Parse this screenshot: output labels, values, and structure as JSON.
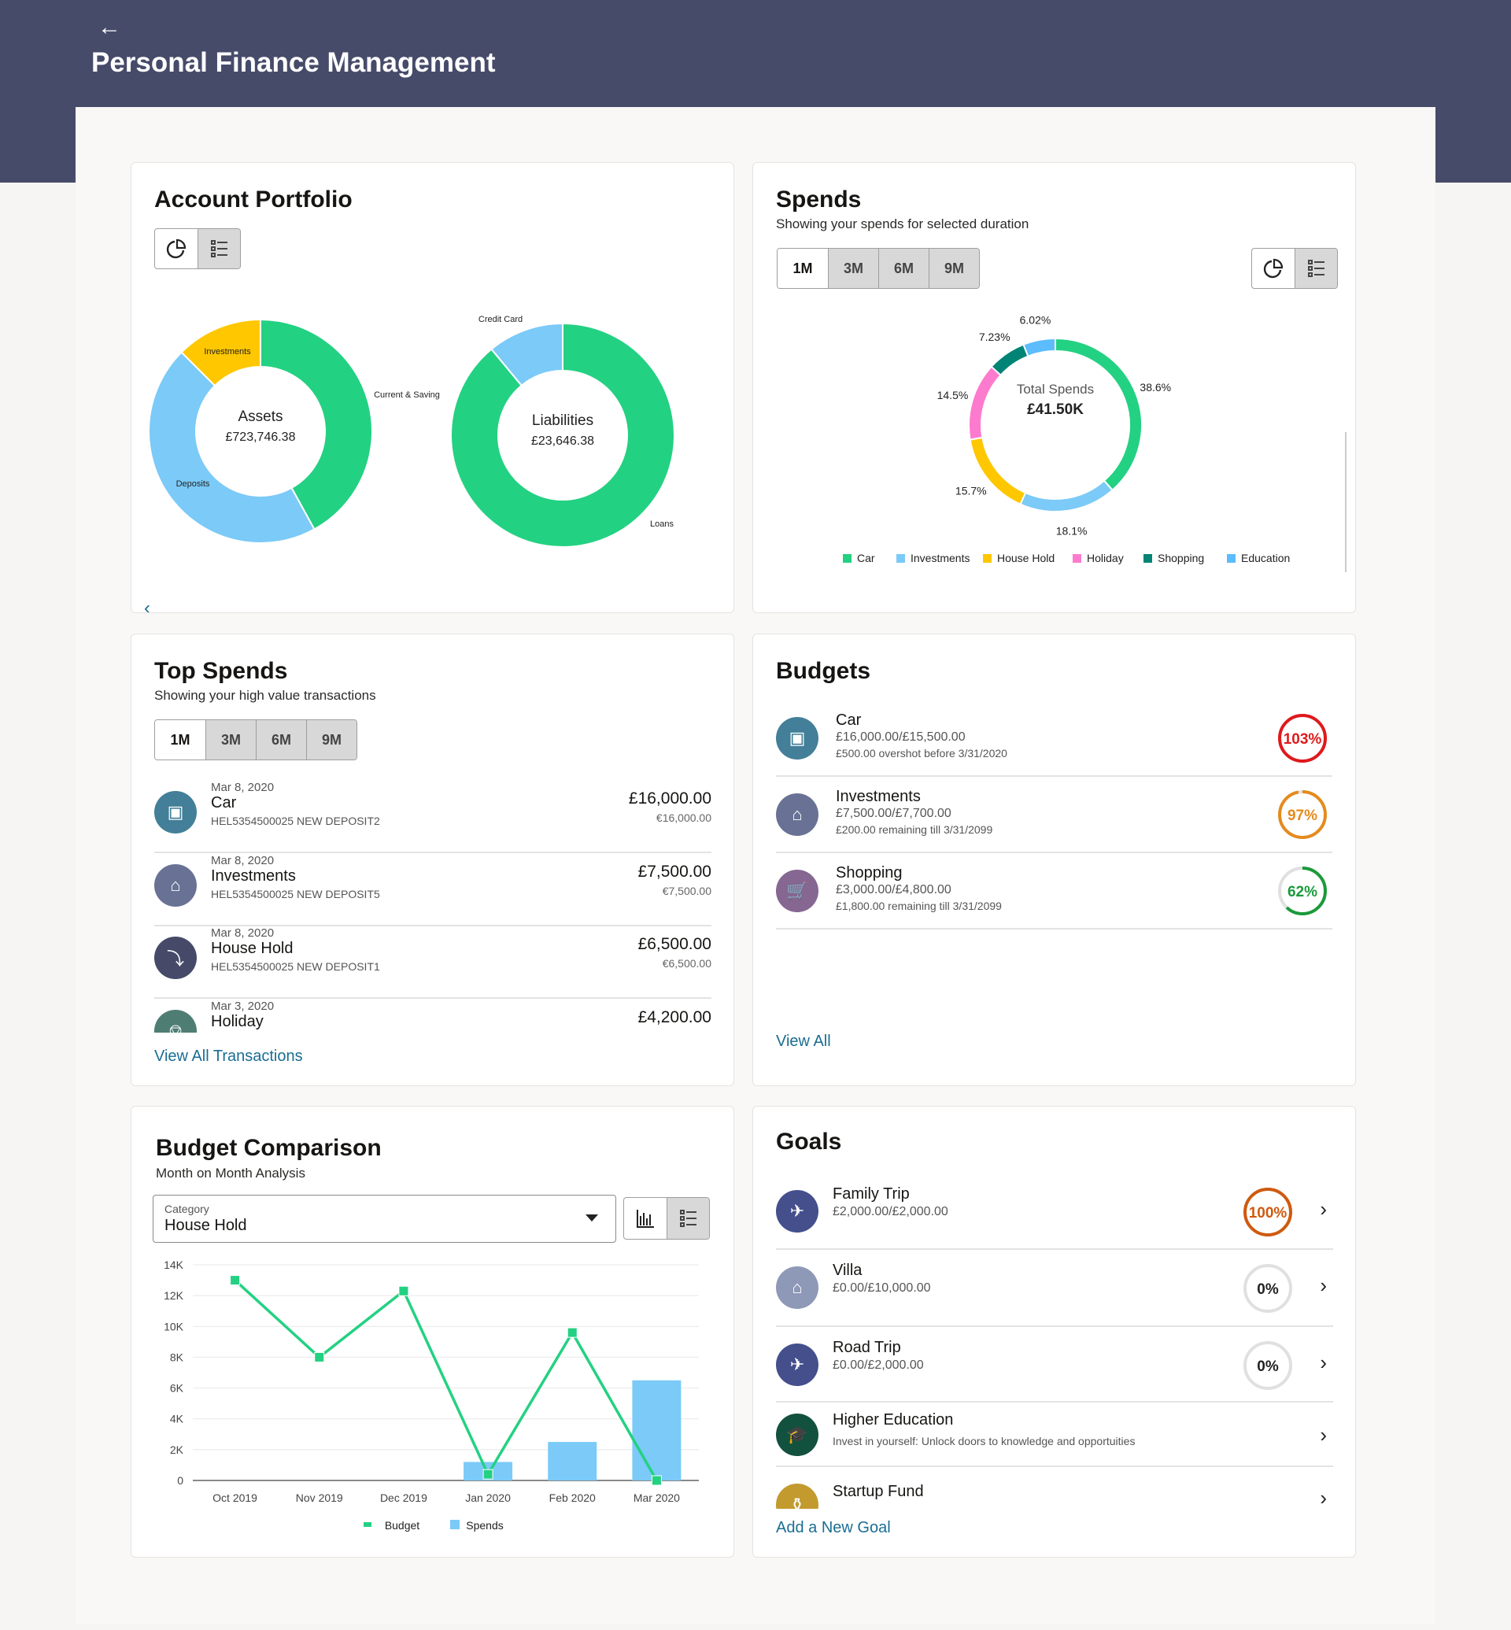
{
  "header": {
    "back_icon": "arrow-left-icon",
    "title": "Personal Finance Management"
  },
  "portfolio": {
    "title": "Account Portfolio",
    "view_pie_icon": "pie-chart-icon",
    "view_list_icon": "list-icon",
    "prev_icon": "chevron-left-icon",
    "assets": {
      "label": "Assets",
      "total": "£723,746.38",
      "segments": [
        {
          "name": "Current & Saving",
          "share": 42,
          "color": "#23d182"
        },
        {
          "name": "Deposits",
          "share": 45.5,
          "color": "#7bcaf8"
        },
        {
          "name": "Investments",
          "share": 12.5,
          "color": "#fec700"
        }
      ]
    },
    "liabilities": {
      "label": "Liabilities",
      "total": "£23,646.38",
      "segments": [
        {
          "name": "Loans",
          "share": 89,
          "color": "#23d182"
        },
        {
          "name": "Credit Card",
          "share": 11,
          "color": "#7bcaf8"
        }
      ]
    }
  },
  "spends": {
    "title": "Spends",
    "subtitle": "Showing your spends for selected duration",
    "periods": [
      "1M",
      "3M",
      "6M",
      "9M"
    ],
    "selected_period": "1M",
    "center_label": "Total Spends",
    "center_value": "£41.50K",
    "chart_data": {
      "type": "pie",
      "series": [
        {
          "name": "Car",
          "value": 38.6,
          "label": "38.6%",
          "color": "#23d182"
        },
        {
          "name": "Investments",
          "value": 18.1,
          "label": "18.1%",
          "color": "#7bcaf8"
        },
        {
          "name": "House Hold",
          "value": 15.7,
          "label": "15.7%",
          "color": "#fec700"
        },
        {
          "name": "Holiday",
          "value": 14.5,
          "label": "14.5%",
          "color": "#fd7bce"
        },
        {
          "name": "Shopping",
          "value": 7.23,
          "label": "7.23%",
          "color": "#008475"
        },
        {
          "name": "Education",
          "value": 6.02,
          "label": "6.02%",
          "color": "#5cbcfd"
        }
      ],
      "legend": "bottom"
    }
  },
  "top_spends": {
    "title": "Top Spends",
    "subtitle": "Showing your high value transactions",
    "periods": [
      "1M",
      "3M",
      "6M",
      "9M"
    ],
    "selected_period": "1M",
    "items": [
      {
        "date": "Mar 8, 2020",
        "name": "Car",
        "ref": "HEL5354500025 NEW DEPOSIT2",
        "amount": "£16,000.00",
        "amount_alt": "€16,000.00",
        "icon": "car-icon",
        "color": "#437f98"
      },
      {
        "date": "Mar 8, 2020",
        "name": "Investments",
        "ref": "HEL5354500025 NEW DEPOSIT5",
        "amount": "£7,500.00",
        "amount_alt": "€7,500.00",
        "icon": "bank-icon",
        "color": "#697295"
      },
      {
        "date": "Mar 8, 2020",
        "name": "House Hold",
        "ref": "HEL5354500025 NEW DEPOSIT1",
        "amount": "£6,500.00",
        "amount_alt": "€6,500.00",
        "icon": "lightning-icon",
        "color": "#464a68"
      },
      {
        "date": "Mar 3, 2020",
        "name": "Holiday",
        "ref": "",
        "amount": "£4,200.00",
        "amount_alt": "",
        "icon": "beach-chair-icon",
        "color": "#4e7d74"
      }
    ],
    "view_all": "View All Transactions"
  },
  "budgets": {
    "title": "Budgets",
    "items": [
      {
        "name": "Car",
        "amount": "£16,000.00/£15,500.00",
        "note": "£500.00 overshot before 3/31/2020",
        "percent": 103,
        "percent_label": "103%",
        "ring_color": "#e0191c",
        "icon": "car-icon",
        "color": "#437f98"
      },
      {
        "name": "Investments",
        "amount": "£7,500.00/£7,700.00",
        "note": "£200.00 remaining till 3/31/2099",
        "percent": 97,
        "percent_label": "97%",
        "ring_color": "#e48b1d",
        "icon": "bank-icon",
        "color": "#697295"
      },
      {
        "name": "Shopping",
        "amount": "£3,000.00/£4,800.00",
        "note": "£1,800.00 remaining till 3/31/2099",
        "percent": 62,
        "percent_label": "62%",
        "ring_color": "#1a9a3a",
        "icon": "cart-icon",
        "color": "#856791"
      }
    ],
    "view_all": "View All"
  },
  "budget_comparison": {
    "title": "Budget Comparison",
    "subtitle": "Month on Month Analysis",
    "category_label": "Category",
    "category_value": "House Hold",
    "chart_data": {
      "type": "bar",
      "categories": [
        "Oct 2019",
        "Nov 2019",
        "Dec 2019",
        "Jan 2020",
        "Feb 2020",
        "Mar 2020"
      ],
      "series": [
        {
          "name": "Budget",
          "type": "line",
          "values": [
            13000,
            8000,
            12300,
            400,
            9600,
            0
          ],
          "color": "#23d182"
        },
        {
          "name": "Spends",
          "type": "bar",
          "values": [
            0,
            0,
            0,
            1200,
            2500,
            6500
          ],
          "color": "#7bcaf8"
        }
      ],
      "yticks": [
        "0",
        "2K",
        "4K",
        "6K",
        "8K",
        "10K",
        "12K",
        "14K"
      ],
      "ylim": [
        0,
        14000
      ],
      "grid": true,
      "legend": "bottom"
    }
  },
  "goals": {
    "title": "Goals",
    "items": [
      {
        "name": "Family Trip",
        "amount": "£2,000.00/£2,000.00",
        "percent": 100,
        "percent_label": "100%",
        "ring_color": "#cf5a0e",
        "icon": "airplane-icon",
        "color": "#444f8c"
      },
      {
        "name": "Villa",
        "amount": "£0.00/£10,000.00",
        "percent": 0,
        "percent_label": "0%",
        "ring_color": "#cccccc",
        "icon": "house-icon",
        "color": "#8e98b7"
      },
      {
        "name": "Road Trip",
        "amount": "£0.00/£2,000.00",
        "percent": 0,
        "percent_label": "0%",
        "ring_color": "#cccccc",
        "icon": "airplane-icon",
        "color": "#444f8c"
      },
      {
        "name": "Higher Education",
        "description": "Invest in yourself: Unlock doors to knowledge and opportuities",
        "icon": "graduation-cap-icon",
        "color": "#13513f"
      },
      {
        "name": "Startup Fund",
        "icon": "money-bag-icon",
        "color": "#c29a2e"
      }
    ],
    "add_goal": "Add a New Goal"
  }
}
